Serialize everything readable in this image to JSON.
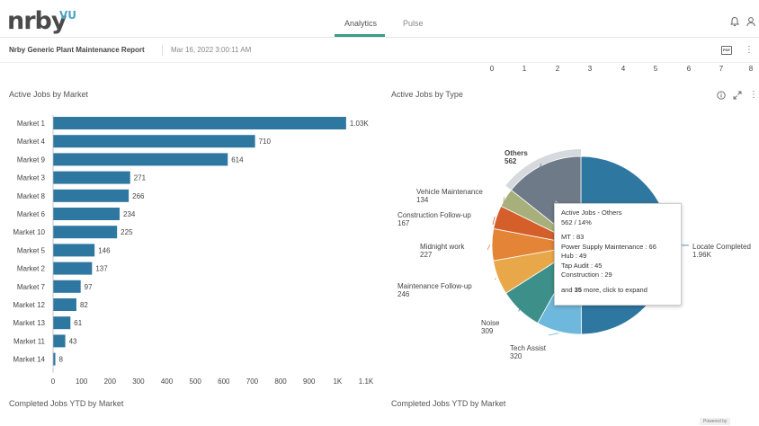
{
  "app": {
    "logo_text": "nrby",
    "logo_sup": "VU",
    "tabs": [
      {
        "label": "Analytics",
        "active": true
      },
      {
        "label": "Pulse",
        "active": false
      }
    ]
  },
  "report": {
    "title": "Nrby Generic Plant Maintenance Report",
    "date": "Mar 16, 2022 3:00:11 AM",
    "pdf_label": "PDF"
  },
  "top_ticks": [
    "0",
    "1",
    "2",
    "3",
    "4",
    "5",
    "6",
    "7",
    "8"
  ],
  "left_panel": {
    "title": "Active Jobs by Market"
  },
  "right_panel": {
    "title": "Active Jobs by Type"
  },
  "bar_chart": {
    "type": "bar",
    "orientation": "horizontal",
    "categories": [
      "Market 1",
      "Market 4",
      "Market 9",
      "Market 3",
      "Market 8",
      "Market 6",
      "Market 10",
      "Market 5",
      "Market 2",
      "Market 7",
      "Market 12",
      "Market 13",
      "Market 11",
      "Market 14"
    ],
    "values": [
      1030,
      710,
      614,
      271,
      266,
      234,
      225,
      146,
      137,
      97,
      82,
      61,
      43,
      8
    ],
    "value_labels": [
      "1.03K",
      "710",
      "614",
      "271",
      "266",
      "234",
      "225",
      "146",
      "137",
      "97",
      "82",
      "61",
      "43",
      "8"
    ],
    "x_ticks": [
      0,
      100,
      200,
      300,
      400,
      500,
      600,
      700,
      800,
      900,
      1000,
      1100
    ],
    "x_tick_labels": [
      "0",
      "100",
      "200",
      "300",
      "400",
      "500",
      "600",
      "700",
      "800",
      "900",
      "1K",
      "1.1K"
    ],
    "xlim": [
      0,
      1100
    ],
    "color": "#2e77a0"
  },
  "pie_chart": {
    "type": "pie",
    "slices": [
      {
        "name": "Locate Completed",
        "value_label": "1.96K",
        "value": 1960,
        "color": "#2e77a0"
      },
      {
        "name": "Tech Assist",
        "value_label": "320",
        "value": 320,
        "color": "#6db8dc"
      },
      {
        "name": "Noise",
        "value_label": "309",
        "value": 309,
        "color": "#3d8f8a"
      },
      {
        "name": "Maintenance Follow-up",
        "value_label": "246",
        "value": 246,
        "color": "#e8a84a"
      },
      {
        "name": "Midnight work",
        "value_label": "227",
        "value": 227,
        "color": "#e38437"
      },
      {
        "name": "Construction Follow-up",
        "value_label": "167",
        "value": 167,
        "color": "#d45f2a"
      },
      {
        "name": "Vehicle Maintenance",
        "value_label": "134",
        "value": 134,
        "color": "#a7b07a"
      },
      {
        "name": "Others",
        "value_label": "562",
        "value": 562,
        "color": "#6e7a88"
      }
    ]
  },
  "tooltip": {
    "header": "Active Jobs  -  Others",
    "sub": "562 / 14%",
    "lines": [
      "MT : 83",
      "Power Supply Maintenance : 66",
      "Hub : 49",
      "Tap Audit : 45",
      "Construction : 29"
    ],
    "foot_pre": "and ",
    "foot_bold": "35",
    "foot_post": " more, click to expand"
  },
  "bottom": {
    "left_title": "Completed Jobs YTD by Market",
    "right_title": "Completed Jobs YTD by Market",
    "powered": "Powered by"
  },
  "colors": {
    "accent": "#3a9b87",
    "bar": "#2e77a0"
  }
}
